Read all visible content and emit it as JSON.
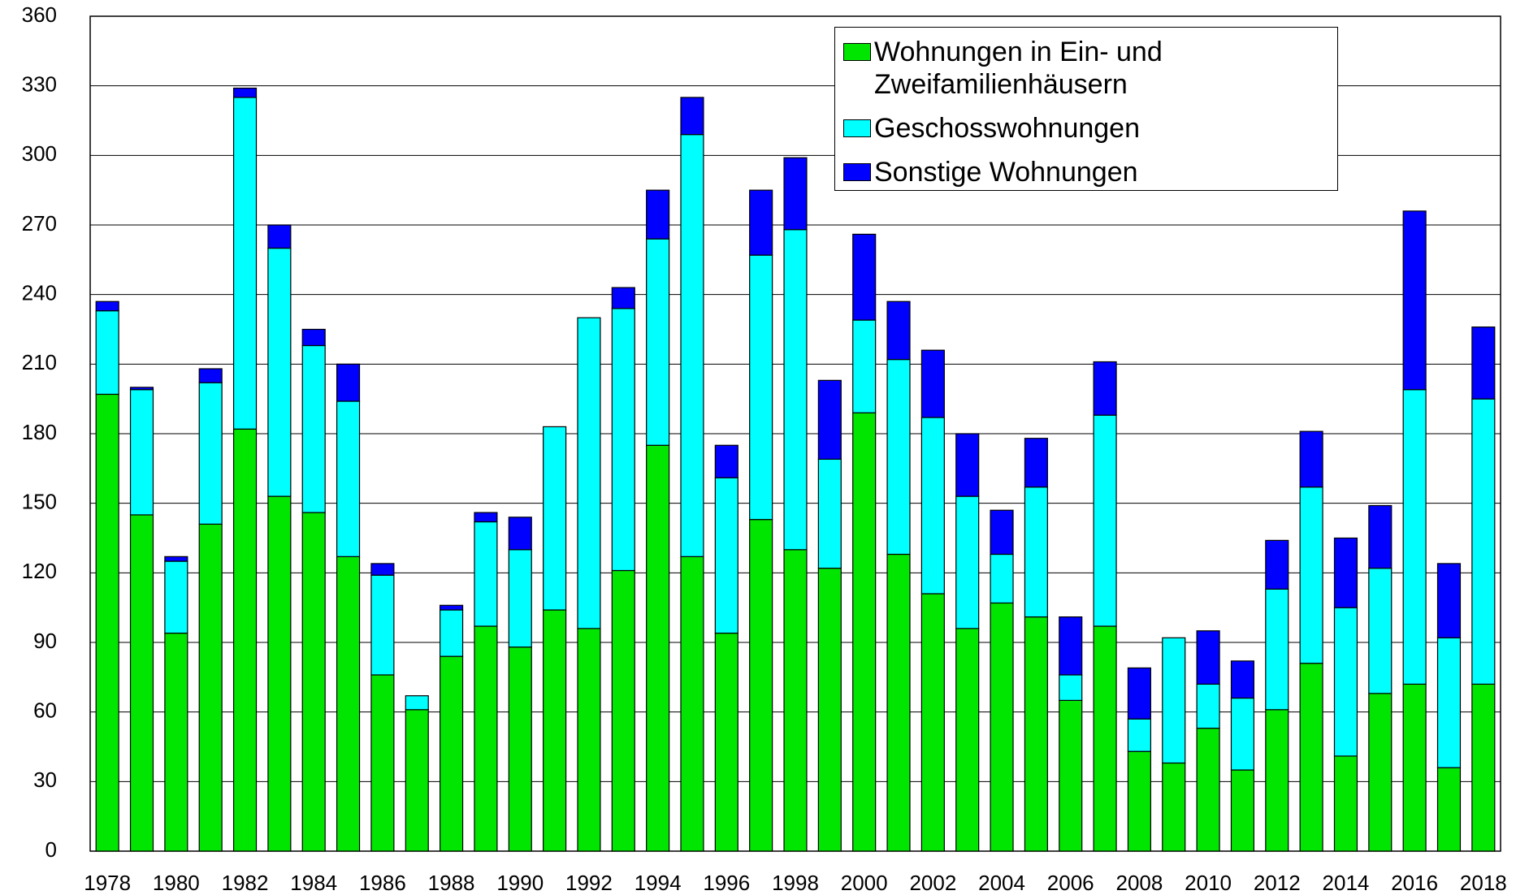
{
  "chart_data": {
    "type": "stacked_bar",
    "categories": [
      "1978",
      null,
      "1980",
      null,
      "1982",
      null,
      "1984",
      null,
      "1986",
      null,
      "1988",
      null,
      "1990",
      null,
      "1992",
      null,
      "1994",
      null,
      "1996",
      null,
      "1998",
      null,
      "2000",
      null,
      "2002",
      null,
      "2004",
      null,
      "2006",
      null,
      "2008",
      null,
      "2010",
      null,
      "2012",
      null,
      "2014",
      null,
      "2016",
      null,
      "2018"
    ],
    "series": [
      {
        "name": "Wohnungen in Ein- und Zweifamilienhäusern",
        "color": "#00e600",
        "values": [
          197,
          145,
          94,
          141,
          182,
          153,
          146,
          127,
          76,
          61,
          84,
          97,
          88,
          104,
          96,
          121,
          175,
          127,
          94,
          143,
          130,
          122,
          189,
          128,
          111,
          96,
          107,
          101,
          65,
          97,
          43,
          38,
          53,
          35,
          61,
          81,
          41,
          68,
          72,
          36,
          72
        ]
      },
      {
        "name": "Geschosswohnungen",
        "color": "#00ffff",
        "values": [
          36,
          54,
          31,
          61,
          143,
          107,
          72,
          67,
          43,
          6,
          20,
          45,
          42,
          79,
          134,
          113,
          89,
          182,
          67,
          114,
          138,
          47,
          40,
          84,
          76,
          57,
          21,
          56,
          11,
          91,
          14,
          54,
          19,
          31,
          52,
          76,
          64,
          54,
          127,
          56,
          123
        ]
      },
      {
        "name": "Sonstige Wohnungen",
        "color": "#0000ff",
        "values": [
          4,
          1,
          2,
          6,
          4,
          10,
          7,
          16,
          5,
          0,
          2,
          4,
          14,
          0,
          0,
          9,
          21,
          16,
          14,
          28,
          31,
          34,
          37,
          25,
          29,
          27,
          19,
          21,
          25,
          23,
          22,
          0,
          23,
          16,
          21,
          24,
          30,
          27,
          77,
          32,
          31
        ]
      }
    ],
    "ylim": [
      0,
      360
    ],
    "yticks": [
      0,
      30,
      60,
      90,
      120,
      150,
      180,
      210,
      240,
      270,
      300,
      330,
      360
    ],
    "grid": true
  }
}
